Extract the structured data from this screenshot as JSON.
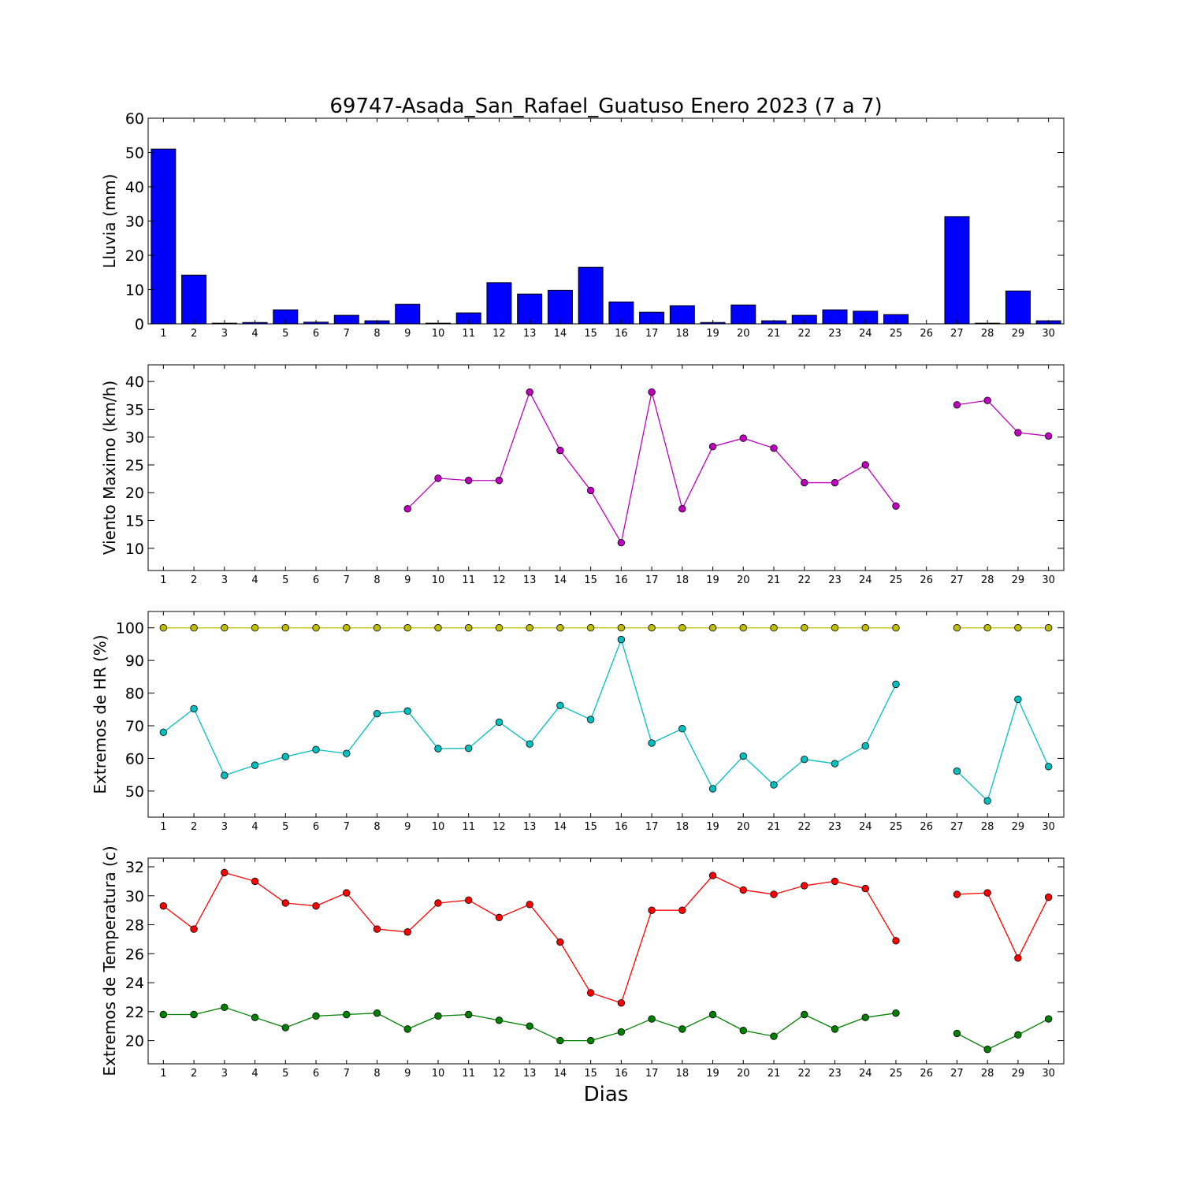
{
  "chart_data": {
    "title": "69747-Asada_San_Rafael_Guatuso Enero 2023  (7 a 7)",
    "xlabel": "Dias",
    "days": [
      1,
      2,
      3,
      4,
      5,
      6,
      7,
      8,
      9,
      10,
      11,
      12,
      13,
      14,
      15,
      16,
      17,
      18,
      19,
      20,
      21,
      22,
      23,
      24,
      25,
      26,
      27,
      28,
      29,
      30
    ],
    "panels": [
      {
        "id": "lluvia",
        "type": "bar",
        "ylabel": "Lluvia (mm)",
        "ylim": [
          0,
          60
        ],
        "yticks": [
          0,
          10,
          20,
          30,
          40,
          50,
          60
        ],
        "series": [
          {
            "color": "#0000ff",
            "values": [
              51,
              14.2,
              0.2,
              0.4,
              4.1,
              0.5,
              2.5,
              0.9,
              5.7,
              0.2,
              3.2,
              12,
              8.7,
              9.8,
              16.5,
              6.4,
              3.4,
              5.3,
              0.4,
              5.5,
              0.9,
              2.5,
              4.1,
              3.7,
              2.7,
              null,
              31.3,
              0.2,
              9.6,
              0.9
            ]
          }
        ]
      },
      {
        "id": "viento",
        "type": "line",
        "ylabel": "Viento Maximo (km/h)",
        "ylim": [
          6,
          43
        ],
        "yticks": [
          10,
          15,
          20,
          25,
          30,
          35,
          40
        ],
        "series": [
          {
            "color": "#bf00bf",
            "values": [
              null,
              null,
              null,
              null,
              null,
              null,
              null,
              null,
              17.1,
              22.6,
              22.2,
              22.2,
              38.1,
              27.6,
              20.4,
              11,
              38.1,
              17.1,
              28.3,
              29.8,
              28,
              21.8,
              21.8,
              25,
              17.6,
              null,
              35.8,
              36.6,
              30.8,
              30.2
            ]
          }
        ]
      },
      {
        "id": "hr",
        "type": "line",
        "ylabel": "Extremos de HR (%)",
        "ylim": [
          42,
          105
        ],
        "yticks": [
          50,
          60,
          70,
          80,
          90,
          100
        ],
        "series": [
          {
            "color": "#bfbf00",
            "values": [
              100,
              100,
              100,
              100,
              100,
              100,
              100,
              100,
              100,
              100,
              100,
              100,
              100,
              100,
              100,
              100,
              100,
              100,
              100,
              100,
              100,
              100,
              100,
              100,
              100,
              null,
              100,
              100,
              100,
              100
            ]
          },
          {
            "color": "#00bfbf",
            "values": [
              68,
              75.2,
              54.8,
              57.9,
              60.5,
              62.7,
              61.5,
              73.7,
              74.5,
              63,
              63.1,
              71.1,
              64.4,
              76.2,
              71.9,
              96.4,
              64.7,
              69.1,
              50.7,
              60.7,
              51.9,
              59.7,
              58.4,
              63.8,
              82.7,
              null,
              56.1,
              47,
              78.1,
              57.5
            ]
          }
        ]
      },
      {
        "id": "temp",
        "type": "line",
        "ylabel": "Extremos de Temperatura (c)",
        "ylim": [
          18.4,
          32.6
        ],
        "yticks": [
          20,
          22,
          24,
          26,
          28,
          30,
          32
        ],
        "series": [
          {
            "color": "#ff0000",
            "values": [
              29.3,
              27.7,
              31.6,
              31,
              29.5,
              29.3,
              30.2,
              27.7,
              27.5,
              29.5,
              29.7,
              28.5,
              29.4,
              26.8,
              23.3,
              22.6,
              29,
              29,
              31.4,
              30.4,
              30.1,
              30.7,
              31,
              30.5,
              26.9,
              null,
              30.1,
              30.2,
              25.7,
              29.9
            ]
          },
          {
            "color": "#008000",
            "values": [
              21.8,
              21.8,
              22.3,
              21.6,
              20.9,
              21.7,
              21.8,
              21.9,
              20.8,
              21.7,
              21.8,
              21.4,
              21,
              20,
              20,
              20.6,
              21.5,
              20.8,
              21.8,
              20.7,
              20.3,
              21.8,
              20.8,
              21.6,
              21.9,
              null,
              20.5,
              19.4,
              20.4,
              21.5
            ]
          }
        ]
      }
    ]
  }
}
